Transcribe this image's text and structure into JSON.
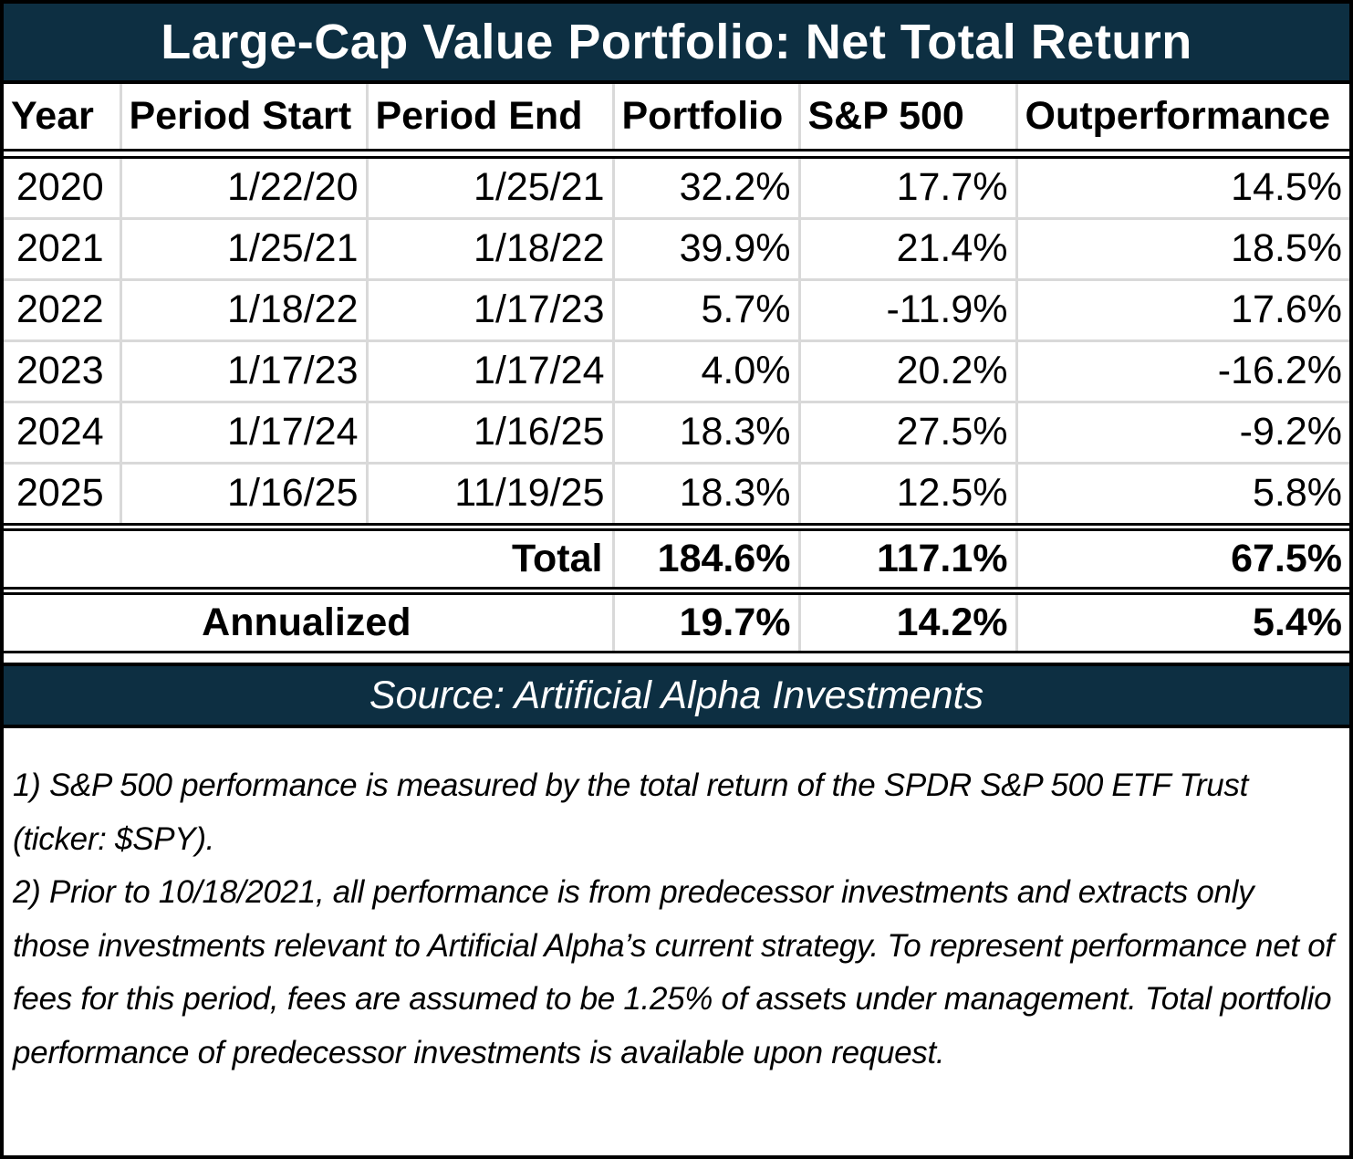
{
  "title": "Large-Cap Value Portfolio: Net Total Return",
  "columns": {
    "year": "Year",
    "period_start": "Period Start",
    "period_end": "Period End",
    "portfolio": "Portfolio",
    "sp500": "S&P 500",
    "outperformance": "Outperformance"
  },
  "rows": [
    {
      "year": "2020",
      "start": "1/22/20",
      "end": "1/25/21",
      "portfolio": "32.2%",
      "sp500": "17.7%",
      "out": "14.5%"
    },
    {
      "year": "2021",
      "start": "1/25/21",
      "end": "1/18/22",
      "portfolio": "39.9%",
      "sp500": "21.4%",
      "out": "18.5%"
    },
    {
      "year": "2022",
      "start": "1/18/22",
      "end": "1/17/23",
      "portfolio": "5.7%",
      "sp500": "-11.9%",
      "out": "17.6%"
    },
    {
      "year": "2023",
      "start": "1/17/23",
      "end": "1/17/24",
      "portfolio": "4.0%",
      "sp500": "20.2%",
      "out": "-16.2%"
    },
    {
      "year": "2024",
      "start": "1/17/24",
      "end": "1/16/25",
      "portfolio": "18.3%",
      "sp500": "27.5%",
      "out": "-9.2%"
    },
    {
      "year": "2025",
      "start": "1/16/25",
      "end": "11/19/25",
      "portfolio": "18.3%",
      "sp500": "12.5%",
      "out": "5.8%"
    }
  ],
  "total": {
    "label": "Total",
    "portfolio": "184.6%",
    "sp500": "117.1%",
    "out": "67.5%"
  },
  "annualized": {
    "label": "Annualized",
    "portfolio": "19.7%",
    "sp500": "14.2%",
    "out": "5.4%"
  },
  "source": "Source: Artificial Alpha Investments",
  "notes": [
    "1) S&P 500 performance is measured by the total return of the SPDR S&P 500 ETF Trust (ticker: $SPY).",
    "2) Prior to 10/18/2021, all performance is from predecessor investments and extracts only those investments relevant to Artificial Alpha’s current strategy. To represent performance net of fees for this period, fees are assumed to be 1.25% of assets under management. Total portfolio performance of predecessor investments is available upon request."
  ],
  "colors": {
    "header_bg": "#0d2f42",
    "grid": "#d9d9d9"
  }
}
